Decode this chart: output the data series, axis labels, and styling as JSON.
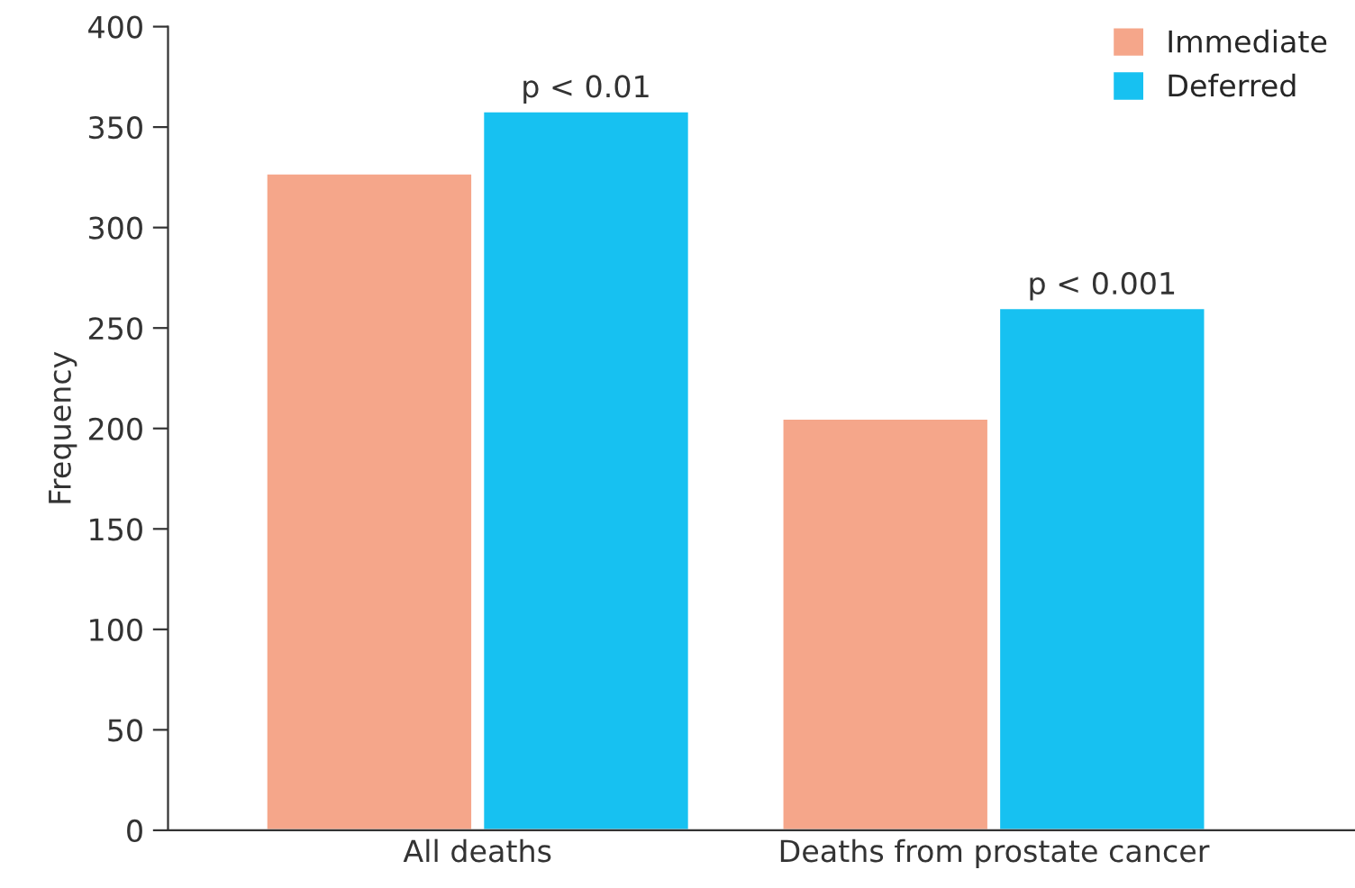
{
  "chart_data": {
    "type": "bar",
    "ylabel": "Frequency",
    "categories": [
      "All deaths",
      "Deaths from prostate cancer"
    ],
    "series": [
      {
        "name": "Immediate",
        "color": "#f5a68a",
        "values": [
          327,
          205
        ]
      },
      {
        "name": "Deferred",
        "color": "#17c1f1",
        "values": [
          358,
          260
        ]
      }
    ],
    "ylim": [
      0,
      400
    ],
    "yticks": [
      0,
      50,
      100,
      150,
      200,
      250,
      300,
      350,
      400
    ],
    "annotations": [
      {
        "text": "p < 0.01",
        "x": "All deaths",
        "y": 358
      },
      {
        "text": "p < 0.001",
        "x": "Deaths from prostate cancer",
        "y": 260
      }
    ],
    "legend": "top right",
    "grid": false
  }
}
